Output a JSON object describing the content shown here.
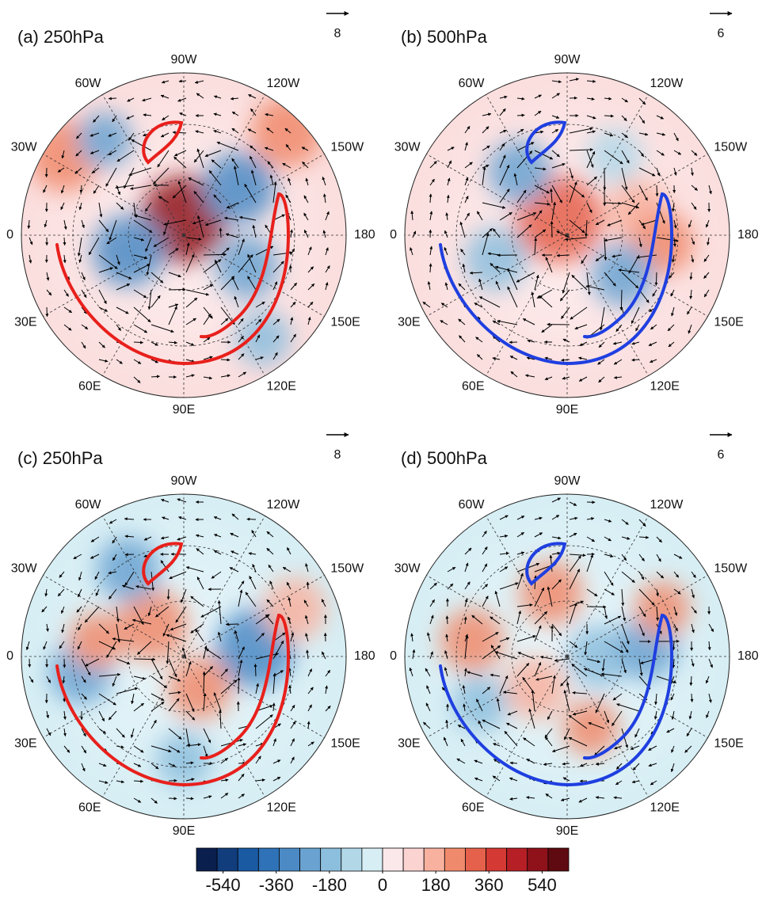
{
  "panels": [
    {
      "title": "(a) 250hPa",
      "ref_vector": 8,
      "contour_color": "#e8201c"
    },
    {
      "title": "(b) 500hPa",
      "ref_vector": 6,
      "contour_color": "#1f3fe0"
    },
    {
      "title": "(c) 250hPa",
      "ref_vector": 8,
      "contour_color": "#e8201c"
    },
    {
      "title": "(d) 500hPa",
      "ref_vector": 6,
      "contour_color": "#1f3fe0"
    }
  ],
  "lon_labels": [
    "90W",
    "120W",
    "150W",
    "180",
    "150E",
    "120E",
    "90E",
    "60E",
    "30E",
    "0",
    "30W",
    "60W"
  ],
  "colorbar": {
    "clim": [
      -630,
      630
    ],
    "ticks": [
      -540,
      -360,
      -180,
      0,
      180,
      360,
      540
    ],
    "colors": [
      "#0b1f4e",
      "#123d7c",
      "#1a5aa3",
      "#2f72b7",
      "#4b8ac5",
      "#6aa3d1",
      "#8cbedd",
      "#b2d8e8",
      "#d6eef4",
      "#fbe8ea",
      "#fbd3d1",
      "#f8b19f",
      "#f08a6c",
      "#e5614b",
      "#d43a33",
      "#b61f26",
      "#8f121b",
      "#5e0a10"
    ]
  }
}
